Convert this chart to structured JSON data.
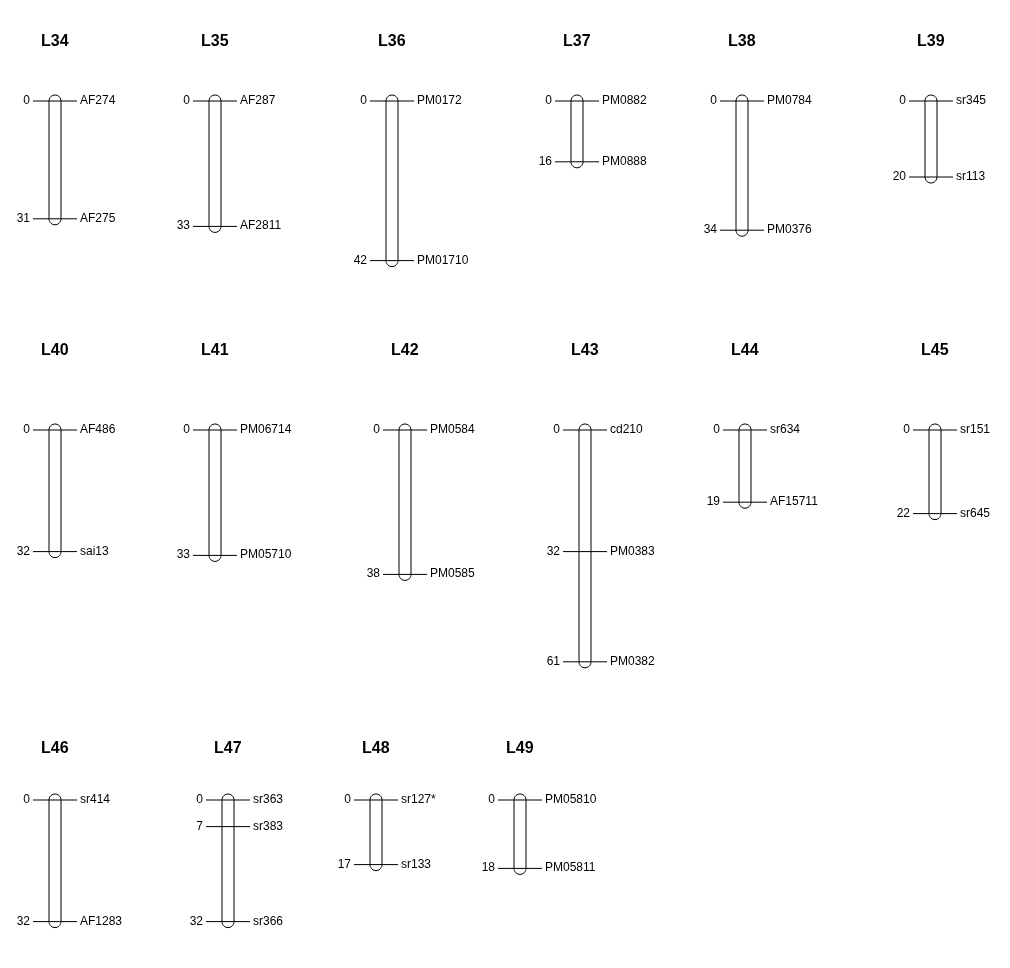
{
  "chart_data": [
    {
      "type": "other",
      "title": "L34",
      "categories": [
        "AF274",
        "AF275"
      ],
      "values": [
        0,
        31
      ],
      "data_labels": true
    },
    {
      "type": "other",
      "title": "L35",
      "categories": [
        "AF287",
        "AF2811"
      ],
      "values": [
        0,
        33
      ],
      "data_labels": true
    },
    {
      "type": "other",
      "title": "L36",
      "categories": [
        "PM0172",
        "PM01710"
      ],
      "values": [
        0,
        42
      ],
      "data_labels": true
    },
    {
      "type": "other",
      "title": "L37",
      "categories": [
        "PM0882",
        "PM0888"
      ],
      "values": [
        0,
        16
      ],
      "data_labels": true
    },
    {
      "type": "other",
      "title": "L38",
      "categories": [
        "PM0784",
        "PM0376"
      ],
      "values": [
        0,
        34
      ],
      "data_labels": true
    },
    {
      "type": "other",
      "title": "L39",
      "categories": [
        "sr345",
        "sr113"
      ],
      "values": [
        0,
        20
      ],
      "data_labels": true
    },
    {
      "type": "other",
      "title": "L40",
      "categories": [
        "AF486",
        "sai13"
      ],
      "values": [
        0,
        32
      ],
      "data_labels": true
    },
    {
      "type": "other",
      "title": "L41",
      "categories": [
        "PM06714",
        "PM05710"
      ],
      "values": [
        0,
        33
      ],
      "data_labels": true
    },
    {
      "type": "other",
      "title": "L42",
      "categories": [
        "PM0584",
        "PM0585"
      ],
      "values": [
        0,
        38
      ],
      "data_labels": true
    },
    {
      "type": "other",
      "title": "L43",
      "categories": [
        "cd210",
        "PM0383",
        "PM0382"
      ],
      "values": [
        0,
        32,
        61
      ],
      "data_labels": true
    },
    {
      "type": "other",
      "title": "L44",
      "categories": [
        "sr634",
        "AF15711"
      ],
      "values": [
        0,
        19
      ],
      "data_labels": true
    },
    {
      "type": "other",
      "title": "L45",
      "categories": [
        "sr151",
        "sr645"
      ],
      "values": [
        0,
        22
      ],
      "data_labels": true
    },
    {
      "type": "other",
      "title": "L46",
      "categories": [
        "sr414",
        "AF1283"
      ],
      "values": [
        0,
        32
      ],
      "data_labels": true
    },
    {
      "type": "other",
      "title": "L47",
      "categories": [
        "sr363",
        "sr383",
        "sr366"
      ],
      "values": [
        0,
        7,
        32
      ],
      "data_labels": true
    },
    {
      "type": "other",
      "title": "L48",
      "categories": [
        "sr127*",
        "sr133"
      ],
      "values": [
        0,
        17
      ],
      "data_labels": true
    },
    {
      "type": "other",
      "title": "L49",
      "categories": [
        "PM05810",
        "PM05811"
      ],
      "values": [
        0,
        18
      ],
      "data_labels": true
    }
  ]
}
